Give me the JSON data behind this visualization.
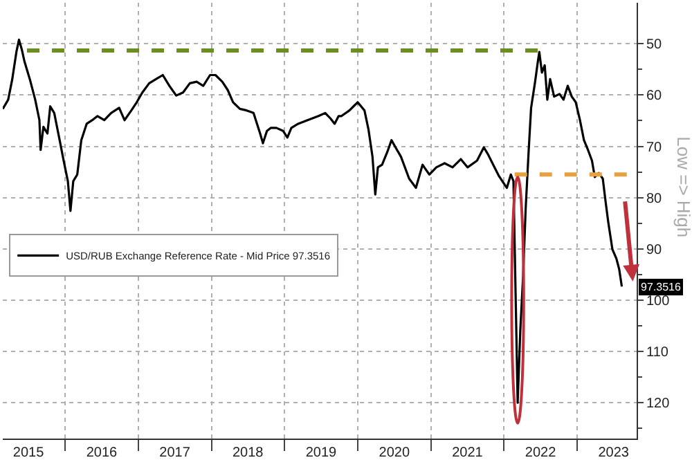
{
  "chart_data": {
    "type": "line",
    "ylabel": "Low => High",
    "legend": "left",
    "grid": true,
    "marker": "none",
    "line_style": "solid",
    "ylim": [
      127,
      42
    ],
    "yticks": [
      50,
      {
        "value": 55,
        "label": null
      },
      60,
      {
        "value": 65,
        "label": null
      },
      70,
      {
        "value": 75,
        "label": null
      },
      80,
      {
        "value": 85,
        "label": null
      },
      90,
      {
        "value": 95,
        "label": null
      },
      100,
      {
        "value": 105,
        "label": null
      },
      110,
      {
        "value": 115,
        "label": null
      },
      120,
      {
        "value": 125,
        "label": null
      }
    ],
    "xlim": [
      "2015-02-24",
      "2023-10-25"
    ],
    "xticks": [
      {
        "value": "2015-07-02",
        "label": "2015"
      },
      {
        "value": "2016-01-01",
        "label": null
      },
      {
        "value": "2016-07-02",
        "label": "2016"
      },
      {
        "value": "2017-01-01",
        "label": null
      },
      {
        "value": "2017-07-02",
        "label": "2017"
      },
      {
        "value": "2018-01-01",
        "label": null
      },
      {
        "value": "2018-07-02",
        "label": "2018"
      },
      {
        "value": "2019-01-01",
        "label": null
      },
      {
        "value": "2019-07-02",
        "label": "2019"
      },
      {
        "value": "2020-01-01",
        "label": null
      },
      {
        "value": "2020-07-02",
        "label": "2020"
      },
      {
        "value": "2021-01-01",
        "label": null
      },
      {
        "value": "2021-07-02",
        "label": "2021"
      },
      {
        "value": "2022-01-01",
        "label": null
      },
      {
        "value": "2022-07-02",
        "label": "2022"
      },
      {
        "value": "2023-01-01",
        "label": null
      },
      {
        "value": "2023-07-02",
        "label": "2023"
      }
    ],
    "x": [
      "2015-02-24",
      "2015-03-23",
      "2015-04-12",
      "2015-05-03",
      "2015-05-16",
      "2015-05-30",
      "2015-06-12",
      "2015-07-09",
      "2015-08-05",
      "2015-08-26",
      "2015-09-01",
      "2015-09-15",
      "2015-10-05",
      "2015-10-19",
      "2015-11-08",
      "2015-12-05",
      "2015-12-25",
      "2016-01-15",
      "2016-01-28",
      "2016-02-11",
      "2016-03-02",
      "2016-03-22",
      "2016-04-18",
      "2016-05-16",
      "2016-06-11",
      "2016-07-15",
      "2016-08-18",
      "2016-09-27",
      "2016-10-24",
      "2016-11-27",
      "2016-12-24",
      "2017-01-21",
      "2017-02-24",
      "2017-03-30",
      "2017-05-03",
      "2017-06-05",
      "2017-07-09",
      "2017-08-12",
      "2017-09-15",
      "2017-10-19",
      "2017-11-21",
      "2017-12-25",
      "2018-01-21",
      "2018-02-24",
      "2018-03-23",
      "2018-04-19",
      "2018-05-23",
      "2018-06-26",
      "2018-07-30",
      "2018-09-01",
      "2018-09-15",
      "2018-10-05",
      "2018-10-25",
      "2018-11-21",
      "2018-12-25",
      "2019-01-15",
      "2019-02-04",
      "2019-03-10",
      "2019-04-12",
      "2019-05-16",
      "2019-06-19",
      "2019-07-23",
      "2019-08-19",
      "2019-09-08",
      "2019-09-28",
      "2019-10-12",
      "2019-11-21",
      "2020-01-01",
      "2020-02-04",
      "2020-02-24",
      "2020-03-15",
      "2020-03-29",
      "2020-04-11",
      "2020-05-02",
      "2020-05-29",
      "2020-06-18",
      "2020-07-08",
      "2020-08-04",
      "2020-09-14",
      "2020-10-18",
      "2020-11-20",
      "2020-12-24",
      "2021-01-28",
      "2021-03-10",
      "2021-04-19",
      "2021-05-30",
      "2021-07-03",
      "2021-08-19",
      "2021-09-22",
      "2021-10-12",
      "2021-11-08",
      "2021-12-05",
      "2022-01-01",
      "2022-01-15",
      "2022-02-04",
      "2022-02-17",
      "2022-03-10",
      "2022-03-23",
      "2022-04-06",
      "2022-04-19",
      "2022-05-03",
      "2022-05-16",
      "2022-06-05",
      "2022-06-19",
      "2022-06-26",
      "2022-07-09",
      "2022-07-23",
      "2022-08-05",
      "2022-08-19",
      "2022-09-08",
      "2022-10-05",
      "2022-10-25",
      "2022-11-15",
      "2022-12-05",
      "2022-12-25",
      "2023-01-15",
      "2023-02-04",
      "2023-02-24",
      "2023-03-16",
      "2023-03-30",
      "2023-04-19",
      "2023-05-09",
      "2023-05-23",
      "2023-06-05",
      "2023-06-26",
      "2023-07-16",
      "2023-07-30",
      "2023-08-12"
    ],
    "series": [
      {
        "name": "USD/RUB Exchange Reference Rate - Mid Price 97.3516",
        "color": "#000000",
        "values": [
          62.7,
          60.9,
          57.0,
          51.6,
          49.2,
          51.1,
          53.4,
          56.9,
          60.9,
          64.9,
          70.7,
          66.2,
          67.5,
          62.2,
          63.5,
          68.8,
          72.8,
          76.8,
          82.6,
          76.8,
          75.5,
          68.8,
          65.6,
          64.9,
          64.1,
          64.9,
          63.5,
          62.5,
          64.9,
          63.0,
          61.4,
          59.5,
          57.7,
          56.9,
          56.1,
          58.2,
          60.1,
          59.5,
          57.7,
          57.4,
          58.2,
          56.1,
          56.1,
          57.4,
          59.0,
          61.4,
          62.7,
          63.0,
          63.5,
          67.5,
          69.4,
          67.0,
          66.4,
          66.4,
          67.0,
          68.3,
          66.4,
          65.6,
          65.1,
          64.6,
          64.1,
          63.5,
          64.6,
          65.6,
          64.1,
          64.1,
          63.0,
          61.4,
          63.0,
          66.7,
          72.0,
          79.4,
          74.1,
          73.6,
          71.0,
          68.8,
          70.2,
          72.0,
          76.3,
          78.1,
          73.6,
          75.5,
          74.1,
          73.3,
          74.1,
          72.5,
          74.1,
          72.8,
          70.2,
          71.5,
          73.6,
          75.7,
          77.3,
          78.1,
          75.5,
          76.8,
          120,
          106,
          95.4,
          82.1,
          71.5,
          62.5,
          57.4,
          53.4,
          51.6,
          55.6,
          54.2,
          60.9,
          56.9,
          60.3,
          59.8,
          60.9,
          58.2,
          60.3,
          61.4,
          64.9,
          68.8,
          70.7,
          72.8,
          76.0,
          75.2,
          76.3,
          80.8,
          84.7,
          90.1,
          91.9,
          94.0,
          97.3516
        ]
      }
    ],
    "ref_lines": [
      {
        "axis": "y",
        "value": 51.3,
        "color": "#6b8e23",
        "line_style": "dashed"
      },
      {
        "axis": "y",
        "value": 75.5,
        "color": "#e8a040",
        "line_style": "dashed"
      }
    ],
    "annotations": [
      {
        "text": "97.3516",
        "x": "2023-08-12",
        "y": 97.3516
      }
    ]
  }
}
